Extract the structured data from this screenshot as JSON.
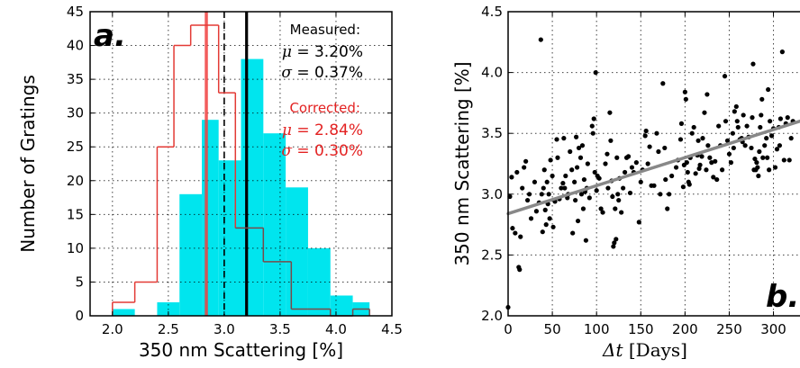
{
  "chart_data": [
    {
      "type": "bar",
      "panel_label": "a.",
      "xlabel": "350 nm Scattering [%]",
      "ylabel": "Number of Gratings",
      "xlim": [
        1.8,
        4.5
      ],
      "ylim": [
        0,
        45
      ],
      "xticks": [
        "2.0",
        "2.5",
        "3.0",
        "3.5",
        "4.0",
        "4.5"
      ],
      "yticks": [
        "0",
        "5",
        "10",
        "15",
        "20",
        "25",
        "30",
        "35",
        "40",
        "45"
      ],
      "grid": true,
      "series": [
        {
          "kind": "filled-histogram",
          "color": "#00e5ee",
          "bins": [
            {
              "x0": 2.0,
              "x1": 2.2,
              "count": 1
            },
            {
              "x0": 2.2,
              "x1": 2.4,
              "count": 0
            },
            {
              "x0": 2.4,
              "x1": 2.6,
              "count": 2
            },
            {
              "x0": 2.6,
              "x1": 2.8,
              "count": 18
            },
            {
              "x0": 2.8,
              "x1": 2.95,
              "count": 29
            },
            {
              "x0": 2.95,
              "x1": 3.15,
              "count": 23
            },
            {
              "x0": 3.15,
              "x1": 3.35,
              "count": 38
            },
            {
              "x0": 3.35,
              "x1": 3.55,
              "count": 27
            },
            {
              "x0": 3.55,
              "x1": 3.75,
              "count": 19
            },
            {
              "x0": 3.75,
              "x1": 3.95,
              "count": 10
            },
            {
              "x0": 3.95,
              "x1": 4.15,
              "count": 3
            },
            {
              "x0": 4.15,
              "x1": 4.3,
              "count": 2
            }
          ]
        },
        {
          "kind": "step-histogram",
          "color": "#e33a35",
          "darkcolor": "#7a4a4a",
          "bins": [
            {
              "x0": 2.0,
              "x1": 2.2,
              "count": 2
            },
            {
              "x0": 2.2,
              "x1": 2.4,
              "count": 5
            },
            {
              "x0": 2.4,
              "x1": 2.55,
              "count": 25
            },
            {
              "x0": 2.55,
              "x1": 2.7,
              "count": 40
            },
            {
              "x0": 2.7,
              "x1": 2.95,
              "count": 43
            },
            {
              "x0": 2.95,
              "x1": 3.1,
              "count": 33
            },
            {
              "x0": 3.1,
              "x1": 3.35,
              "count": 13
            },
            {
              "x0": 3.35,
              "x1": 3.6,
              "count": 8
            },
            {
              "x0": 3.6,
              "x1": 3.75,
              "count": 1
            },
            {
              "x0": 3.75,
              "x1": 3.95,
              "count": 1
            },
            {
              "x0": 3.95,
              "x1": 4.15,
              "count": 0
            },
            {
              "x0": 4.15,
              "x1": 4.3,
              "count": 1
            }
          ]
        }
      ],
      "vlines": [
        {
          "x": 3.2,
          "color": "#000000",
          "style": "solid"
        },
        {
          "x": 2.84,
          "color": "#f04040",
          "style": "solid"
        },
        {
          "x": 3.0,
          "color": "#000000",
          "style": "dashed"
        }
      ],
      "annotations": [
        {
          "title": "Measured:",
          "mu": "3.20%",
          "sigma": "0.37%",
          "color": "#000000"
        },
        {
          "title": "Corrected:",
          "mu": "2.84%",
          "sigma": "0.30%",
          "color": "#e32222"
        }
      ],
      "mu_symbol": "μ",
      "sigma_symbol": "σ",
      "equals": "="
    },
    {
      "type": "scatter",
      "panel_label": "b.",
      "xlabel_symbol": "Δt",
      "xlabel": " [Days]",
      "ylabel": "350 nm Scattering [%]",
      "xlim": [
        0,
        330
      ],
      "ylim": [
        2.0,
        4.5
      ],
      "xticks": [
        "0",
        "50",
        "100",
        "150",
        "200",
        "250",
        "300"
      ],
      "yticks": [
        "2.0",
        "2.5",
        "3.0",
        "3.5",
        "4.0",
        "4.5"
      ],
      "grid": true,
      "point_color": "#000000",
      "fit_line": {
        "x": [
          0,
          330
        ],
        "y": [
          2.84,
          3.6
        ],
        "color": "#888888"
      },
      "points": [
        [
          0,
          2.07
        ],
        [
          2,
          2.98
        ],
        [
          4,
          3.14
        ],
        [
          5,
          2.72
        ],
        [
          8,
          2.68
        ],
        [
          10,
          3.18
        ],
        [
          12,
          2.4
        ],
        [
          13,
          2.38
        ],
        [
          14,
          2.65
        ],
        [
          16,
          3.05
        ],
        [
          18,
          3.22
        ],
        [
          20,
          3.27
        ],
        [
          22,
          2.95
        ],
        [
          24,
          3.0
        ],
        [
          26,
          2.8
        ],
        [
          30,
          3.1
        ],
        [
          32,
          2.86
        ],
        [
          35,
          2.93
        ],
        [
          37,
          4.27
        ],
        [
          38,
          3.0
        ],
        [
          39,
          2.69
        ],
        [
          40,
          3.05
        ],
        [
          41,
          3.2
        ],
        [
          42,
          2.87
        ],
        [
          43,
          2.75
        ],
        [
          44,
          3.1
        ],
        [
          45,
          2.92
        ],
        [
          46,
          3.0
        ],
        [
          47,
          2.8
        ],
        [
          48,
          3.28
        ],
        [
          50,
          3.15
        ],
        [
          51,
          2.73
        ],
        [
          53,
          2.94
        ],
        [
          55,
          3.45
        ],
        [
          56,
          3.3
        ],
        [
          58,
          2.96
        ],
        [
          60,
          3.05
        ],
        [
          62,
          3.09
        ],
        [
          63,
          3.46
        ],
        [
          64,
          3.05
        ],
        [
          65,
          3.15
        ],
        [
          67,
          2.97
        ],
        [
          68,
          3.0
        ],
        [
          70,
          3.35
        ],
        [
          72,
          3.2
        ],
        [
          73,
          2.68
        ],
        [
          75,
          3.1
        ],
        [
          76,
          2.95
        ],
        [
          77,
          3.47
        ],
        [
          78,
          3.22
        ],
        [
          79,
          2.78
        ],
        [
          80,
          3.38
        ],
        [
          82,
          3.3
        ],
        [
          83,
          3.0
        ],
        [
          84,
          3.4
        ],
        [
          85,
          2.88
        ],
        [
          86,
          3.12
        ],
        [
          87,
          3.02
        ],
        [
          88,
          2.62
        ],
        [
          89,
          3.05
        ],
        [
          90,
          3.25
        ],
        [
          92,
          2.97
        ],
        [
          95,
          3.56
        ],
        [
          96,
          3.5
        ],
        [
          97,
          3.62
        ],
        [
          98,
          3.18
        ],
        [
          99,
          4.0
        ],
        [
          100,
          3.03
        ],
        [
          101,
          3.15
        ],
        [
          103,
          3.13
        ],
        [
          105,
          2.88
        ],
        [
          107,
          2.85
        ],
        [
          110,
          3.25
        ],
        [
          112,
          3.33
        ],
        [
          113,
          3.05
        ],
        [
          115,
          3.67
        ],
        [
          116,
          3.44
        ],
        [
          117,
          3.11
        ],
        [
          118,
          2.98
        ],
        [
          119,
          2.57
        ],
        [
          120,
          2.6
        ],
        [
          121,
          2.88
        ],
        [
          122,
          2.63
        ],
        [
          123,
          3.3
        ],
        [
          124,
          3.0
        ],
        [
          125,
          2.95
        ],
        [
          126,
          3.13
        ],
        [
          128,
          2.85
        ],
        [
          130,
          3.05
        ],
        [
          132,
          3.18
        ],
        [
          134,
          3.3
        ],
        [
          136,
          3.31
        ],
        [
          138,
          3.01
        ],
        [
          140,
          3.22
        ],
        [
          142,
          3.18
        ],
        [
          145,
          3.26
        ],
        [
          148,
          2.77
        ],
        [
          150,
          3.1
        ],
        [
          152,
          3.2
        ],
        [
          155,
          3.48
        ],
        [
          156,
          3.52
        ],
        [
          158,
          3.25
        ],
        [
          160,
          3.39
        ],
        [
          162,
          3.07
        ],
        [
          165,
          3.07
        ],
        [
          168,
          3.5
        ],
        [
          170,
          3.35
        ],
        [
          172,
          3.0
        ],
        [
          175,
          3.91
        ],
        [
          177,
          3.38
        ],
        [
          178,
          3.12
        ],
        [
          180,
          2.88
        ],
        [
          182,
          3.0
        ],
        [
          185,
          3.15
        ],
        [
          190,
          3.22
        ],
        [
          192,
          3.28
        ],
        [
          195,
          3.45
        ],
        [
          196,
          3.58
        ],
        [
          198,
          3.06
        ],
        [
          199,
          3.24
        ],
        [
          200,
          3.84
        ],
        [
          201,
          3.78
        ],
        [
          202,
          3.26
        ],
        [
          203,
          3.18
        ],
        [
          204,
          3.1
        ],
        [
          205,
          3.08
        ],
        [
          206,
          3.3
        ],
        [
          208,
          3.5
        ],
        [
          210,
          3.55
        ],
        [
          212,
          3.17
        ],
        [
          214,
          3.32
        ],
        [
          215,
          3.44
        ],
        [
          216,
          3.21
        ],
        [
          217,
          3.24
        ],
        [
          219,
          3.31
        ],
        [
          220,
          3.46
        ],
        [
          222,
          3.67
        ],
        [
          224,
          3.2
        ],
        [
          225,
          3.82
        ],
        [
          226,
          3.4
        ],
        [
          228,
          3.3
        ],
        [
          230,
          3.26
        ],
        [
          232,
          3.14
        ],
        [
          234,
          3.27
        ],
        [
          236,
          3.12
        ],
        [
          238,
          3.56
        ],
        [
          240,
          3.4
        ],
        [
          242,
          3.2
        ],
        [
          245,
          3.97
        ],
        [
          246,
          3.6
        ],
        [
          248,
          3.44
        ],
        [
          250,
          3.33
        ],
        [
          252,
          3.26
        ],
        [
          254,
          3.5
        ],
        [
          255,
          3.38
        ],
        [
          256,
          3.68
        ],
        [
          258,
          3.72
        ],
        [
          259,
          3.6
        ],
        [
          260,
          3.55
        ],
        [
          262,
          3.45
        ],
        [
          264,
          3.46
        ],
        [
          265,
          3.43
        ],
        [
          266,
          3.65
        ],
        [
          268,
          3.4
        ],
        [
          270,
          3.56
        ],
        [
          272,
          3.47
        ],
        [
          275,
          3.38
        ],
        [
          276,
          3.63
        ],
        [
          277,
          4.07
        ],
        [
          278,
          3.2
        ],
        [
          279,
          3.29
        ],
        [
          280,
          3.2
        ],
        [
          281,
          3.26
        ],
        [
          282,
          3.22
        ],
        [
          283,
          3.15
        ],
        [
          284,
          3.35
        ],
        [
          285,
          3.55
        ],
        [
          286,
          3.65
        ],
        [
          287,
          3.78
        ],
        [
          288,
          3.3
        ],
        [
          290,
          3.4
        ],
        [
          292,
          3.46
        ],
        [
          293,
          3.3
        ],
        [
          294,
          3.86
        ],
        [
          295,
          3.2
        ],
        [
          296,
          3.6
        ],
        [
          298,
          3.48
        ],
        [
          300,
          3.54
        ],
        [
          302,
          3.22
        ],
        [
          304,
          3.37
        ],
        [
          306,
          3.55
        ],
        [
          307,
          3.4
        ],
        [
          308,
          3.62
        ],
        [
          310,
          4.17
        ],
        [
          312,
          3.28
        ],
        [
          314,
          3.58
        ],
        [
          316,
          3.63
        ],
        [
          318,
          3.28
        ],
        [
          320,
          3.46
        ],
        [
          322,
          3.6
        ]
      ]
    }
  ]
}
